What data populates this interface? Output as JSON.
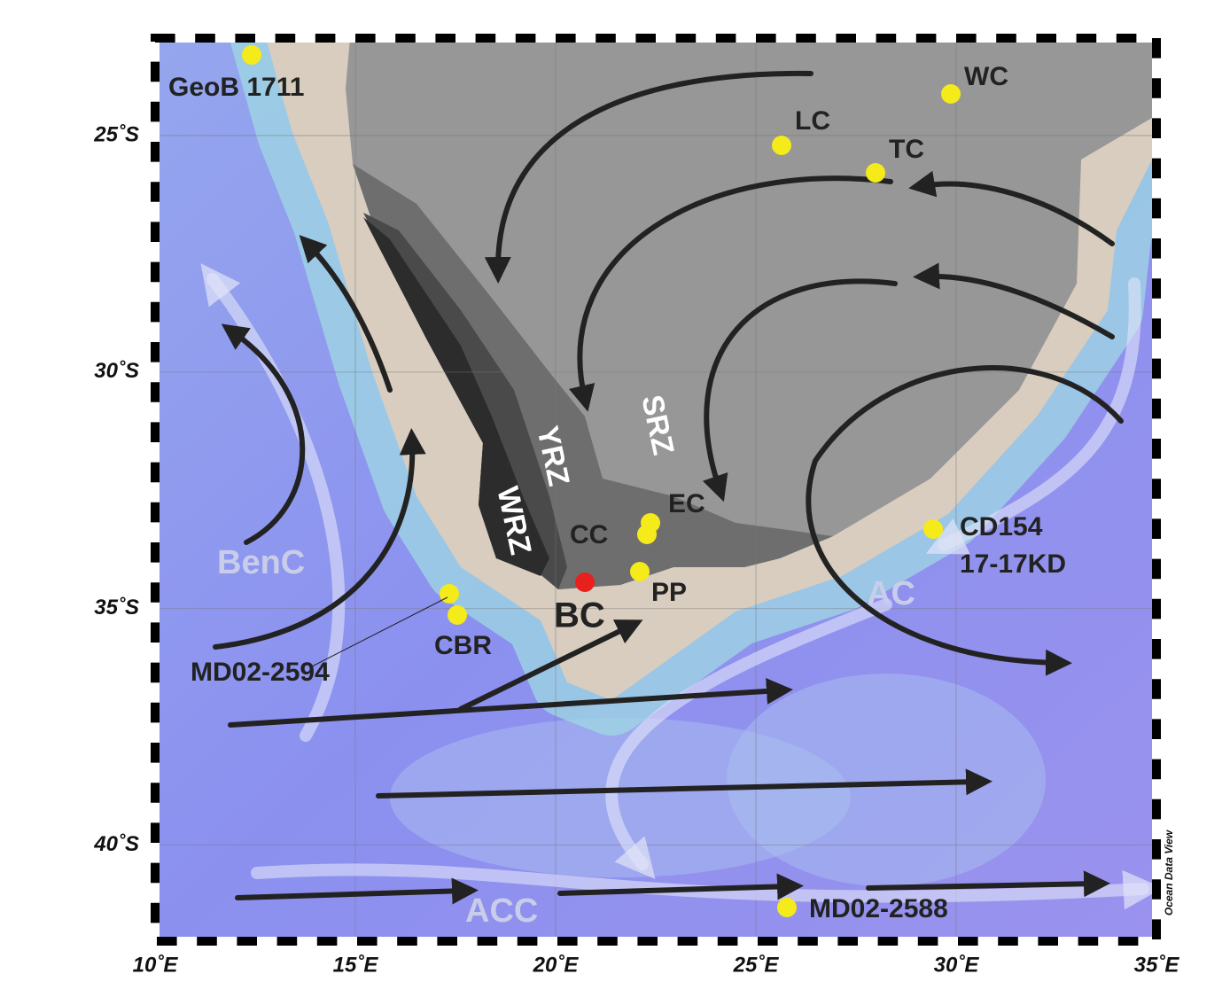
{
  "map": {
    "lon_range": [
      10,
      35
    ],
    "lat_range": [
      -22.94,
      -42.03
    ],
    "lon_ticks": [
      {
        "value": 10,
        "label": "10˚E"
      },
      {
        "value": 15,
        "label": "15˚E"
      },
      {
        "value": 20,
        "label": "20˚E"
      },
      {
        "value": 25,
        "label": "25˚E"
      },
      {
        "value": 30,
        "label": "30˚E"
      },
      {
        "value": 35,
        "label": "35˚E"
      }
    ],
    "lat_ticks": [
      {
        "value": -25,
        "label": "25˚S"
      },
      {
        "value": -30,
        "label": "30˚S"
      },
      {
        "value": -35,
        "label": "35˚S"
      },
      {
        "value": -40,
        "label": "40˚S"
      }
    ]
  },
  "sites": [
    "GeoB 1711",
    "WC",
    "LC",
    "TC",
    "EC",
    "CC",
    "PP",
    "BC",
    "CBR",
    "MD02-2594",
    [
      "CD154",
      "17-17KD"
    ],
    "MD02-2588"
  ],
  "zones": [
    "YRZ",
    "WRZ",
    "SRZ"
  ],
  "currents": [
    "BenC",
    "AC",
    "ACC"
  ],
  "credit": "Ocean Data View"
}
